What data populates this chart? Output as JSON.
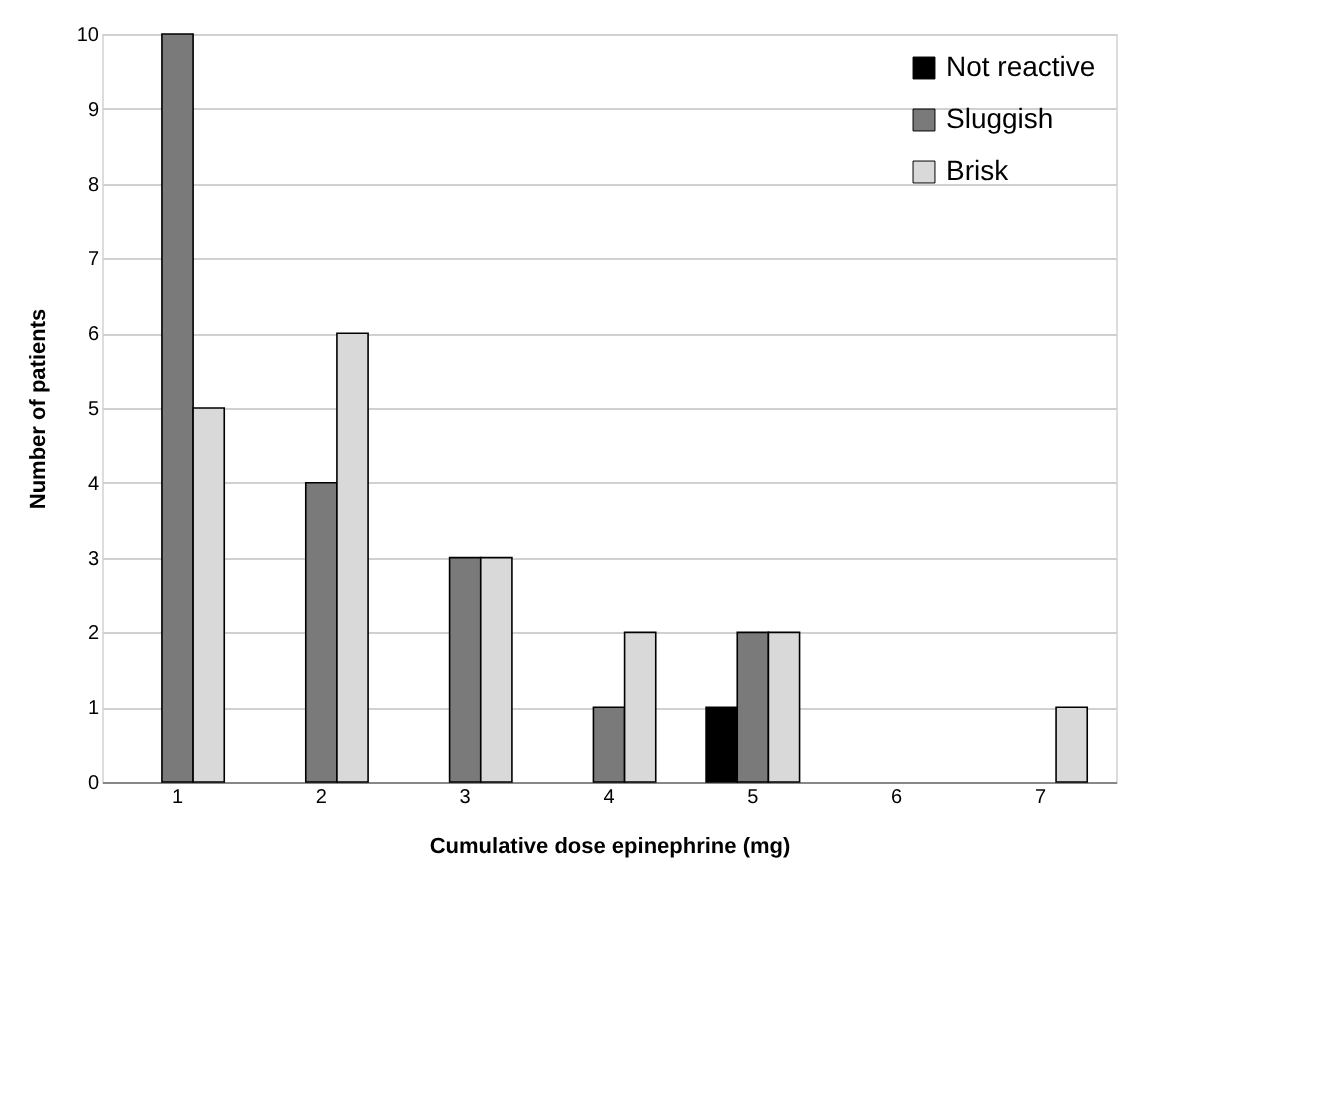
{
  "chart_data": {
    "type": "bar",
    "xlabel": "Cumulative dose epinephrine (mg)",
    "ylabel": "Number of patients",
    "categories": [
      "1",
      "2",
      "3",
      "4",
      "5",
      "6",
      "7"
    ],
    "series": [
      {
        "name": "Not reactive",
        "color": "#000000",
        "values": [
          null,
          null,
          null,
          null,
          1,
          null,
          null
        ]
      },
      {
        "name": "Sluggish",
        "color": "#7a7a7a",
        "values": [
          10,
          4,
          3,
          1,
          2,
          null,
          null
        ]
      },
      {
        "name": "Brisk",
        "color": "#d9d9d9",
        "values": [
          5,
          6,
          3,
          2,
          2,
          null,
          1
        ]
      }
    ],
    "ylim": [
      0,
      10
    ],
    "yticks": [
      0,
      1,
      2,
      3,
      4,
      5,
      6,
      7,
      8,
      9,
      10
    ],
    "grid": "y",
    "legend": "top right"
  }
}
